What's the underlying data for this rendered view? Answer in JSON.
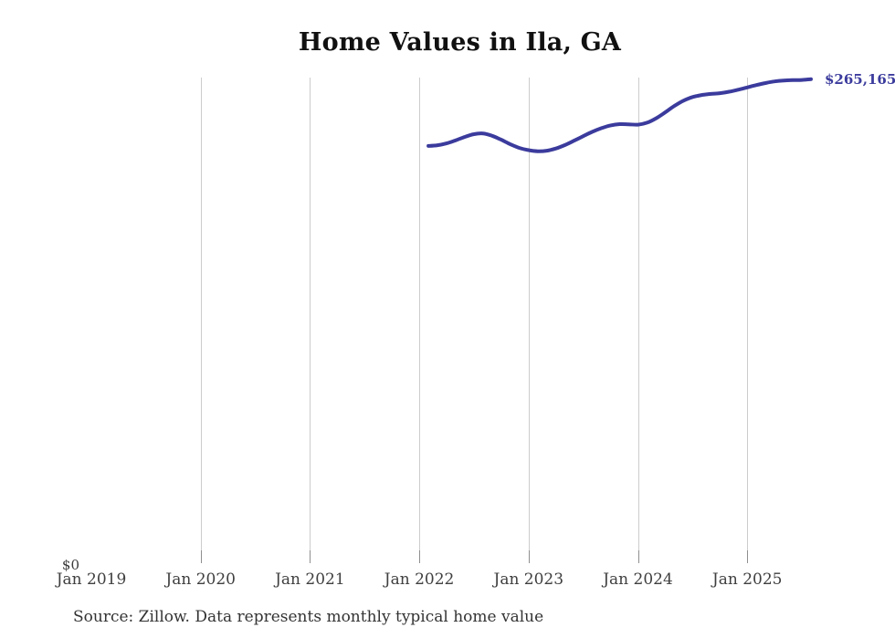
{
  "title": "Home Values in Ila, GA",
  "source_note": "Source: Zillow. Data represents monthly typical home value",
  "y_axis": {
    "zero_label": "$0"
  },
  "end_label": "$265,165",
  "colors": {
    "line": "#3b3b9d",
    "grid": "#cccccc",
    "tick": "#8f8f8f",
    "axis_text": "#3f3f3f",
    "title_text": "#111111",
    "source_text": "#333333"
  },
  "x_axis": {
    "ticks": [
      {
        "label": "Jan 2019",
        "date": "2019-01",
        "gridline": false
      },
      {
        "label": "Jan 2020",
        "date": "2020-01",
        "gridline": true
      },
      {
        "label": "Jan 2021",
        "date": "2021-01",
        "gridline": true
      },
      {
        "label": "Jan 2022",
        "date": "2022-01",
        "gridline": true
      },
      {
        "label": "Jan 2023",
        "date": "2023-01",
        "gridline": true
      },
      {
        "label": "Jan 2024",
        "date": "2024-01",
        "gridline": true
      },
      {
        "label": "Jan 2025",
        "date": "2025-01",
        "gridline": true
      }
    ]
  },
  "chart_data": {
    "type": "line",
    "title": "Home Values in Ila, GA",
    "series_name": "Typical home value (monthly, Zillow)",
    "x_range_shown": [
      "Jan 2019",
      "Aug 2025"
    ],
    "data_range": [
      "2022-02",
      "2025-08"
    ],
    "ylim": [
      0,
      266000
    ],
    "grid": "vertical-only",
    "legend": "none",
    "final_value": 265165,
    "final_value_label": "$265,165",
    "x": [
      "2022-02",
      "2022-03",
      "2022-04",
      "2022-05",
      "2022-06",
      "2022-07",
      "2022-08",
      "2022-09",
      "2022-10",
      "2022-11",
      "2022-12",
      "2023-01",
      "2023-02",
      "2023-03",
      "2023-04",
      "2023-05",
      "2023-06",
      "2023-07",
      "2023-08",
      "2023-09",
      "2023-10",
      "2023-11",
      "2023-12",
      "2024-01",
      "2024-02",
      "2024-03",
      "2024-04",
      "2024-05",
      "2024-06",
      "2024-07",
      "2024-08",
      "2024-09",
      "2024-10",
      "2024-11",
      "2024-12",
      "2025-01",
      "2025-02",
      "2025-03",
      "2025-04",
      "2025-05",
      "2025-06",
      "2025-07",
      "2025-08"
    ],
    "values": [
      228400,
      228800,
      229800,
      231500,
      233400,
      234900,
      235300,
      234000,
      231800,
      229300,
      227300,
      226100,
      225500,
      225800,
      227000,
      228900,
      231300,
      233800,
      236200,
      238200,
      239700,
      240400,
      240300,
      240100,
      241200,
      243600,
      246900,
      250400,
      253300,
      255300,
      256400,
      257000,
      257400,
      258200,
      259300,
      260600,
      261900,
      263000,
      263900,
      264400,
      264600,
      264700,
      265165
    ]
  }
}
